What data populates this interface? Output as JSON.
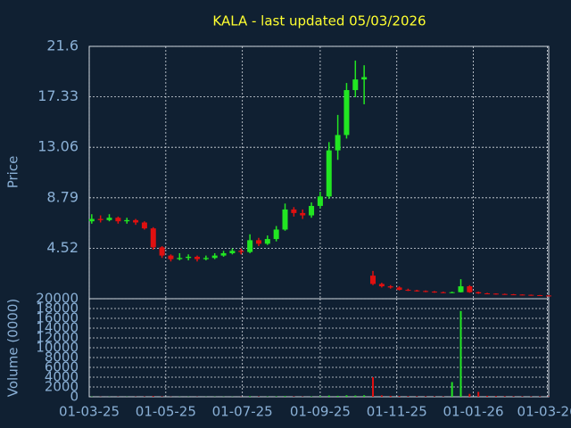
{
  "chart_data": {
    "type": "candlestick",
    "title": "KALA - last updated 05/03/2026",
    "ylabel": "Price",
    "up_color": "#22e622",
    "down_color": "#e01010",
    "grid": true,
    "xlim": [
      "2025-03-01",
      "2026-03-02"
    ],
    "xticks": [
      {
        "value": "2025-03-01",
        "label": "01-03-25"
      },
      {
        "value": "2025-05-01",
        "label": "01-05-25"
      },
      {
        "value": "2025-07-01",
        "label": "01-07-25"
      },
      {
        "value": "2025-09-01",
        "label": "01-09-25"
      },
      {
        "value": "2025-11-01",
        "label": "01-11-25"
      },
      {
        "value": "2026-01-01",
        "label": "01-01-26"
      },
      {
        "value": "2026-03-01",
        "label": "01-03-26"
      }
    ],
    "ylim": [
      0.25,
      21.6
    ],
    "yticks": [
      4.52,
      8.79,
      13.06,
      17.33,
      21.6
    ],
    "x": [
      "2025-03-03",
      "2025-03-10",
      "2025-03-17",
      "2025-03-24",
      "2025-03-31",
      "2025-04-07",
      "2025-04-14",
      "2025-04-21",
      "2025-04-28",
      "2025-05-05",
      "2025-05-12",
      "2025-05-19",
      "2025-05-26",
      "2025-06-02",
      "2025-06-09",
      "2025-06-16",
      "2025-06-23",
      "2025-06-30",
      "2025-07-07",
      "2025-07-14",
      "2025-07-21",
      "2025-07-28",
      "2025-08-04",
      "2025-08-11",
      "2025-08-18",
      "2025-08-25",
      "2025-09-01",
      "2025-09-08",
      "2025-09-15",
      "2025-09-22",
      "2025-09-29",
      "2025-10-06",
      "2025-10-13",
      "2025-10-20",
      "2025-10-27",
      "2025-11-03",
      "2025-11-10",
      "2025-11-17",
      "2025-11-24",
      "2025-12-01",
      "2025-12-08",
      "2025-12-15",
      "2025-12-22",
      "2025-12-29",
      "2026-01-05",
      "2026-01-12",
      "2026-01-19",
      "2026-01-26",
      "2026-02-02",
      "2026-02-09",
      "2026-02-16",
      "2026-02-23",
      "2026-03-02"
    ],
    "open": [
      6.8,
      7.0,
      6.9,
      7.1,
      6.8,
      6.9,
      6.7,
      6.2,
      4.6,
      3.9,
      3.6,
      3.7,
      3.8,
      3.6,
      3.7,
      3.9,
      4.1,
      4.3,
      4.2,
      5.2,
      4.9,
      5.3,
      6.1,
      7.8,
      7.5,
      7.3,
      8.1,
      8.9,
      12.8,
      14.1,
      17.9,
      18.8,
      2.2,
      1.5,
      1.3,
      1.2,
      1.0,
      0.95,
      0.9,
      0.85,
      0.8,
      0.75,
      0.8,
      1.3,
      0.8,
      0.7,
      0.68,
      0.65,
      0.62,
      0.6,
      0.58,
      0.55,
      0.52
    ],
    "high": [
      7.4,
      7.3,
      7.4,
      7.2,
      7.1,
      7.0,
      6.8,
      6.3,
      4.7,
      4.0,
      4.1,
      4.0,
      3.9,
      3.9,
      4.1,
      4.3,
      4.5,
      4.5,
      5.7,
      5.4,
      5.6,
      6.4,
      8.3,
      8.0,
      7.8,
      8.4,
      9.3,
      13.5,
      15.8,
      18.5,
      20.4,
      20.0,
      2.6,
      1.6,
      1.4,
      1.3,
      1.1,
      1.0,
      0.95,
      0.9,
      0.85,
      0.85,
      1.9,
      1.4,
      0.85,
      0.75,
      0.7,
      0.68,
      0.65,
      0.62,
      0.6,
      0.57,
      0.55
    ],
    "low": [
      6.6,
      6.7,
      6.8,
      6.6,
      6.6,
      6.5,
      6.1,
      4.4,
      3.7,
      3.4,
      3.5,
      3.5,
      3.4,
      3.5,
      3.6,
      3.8,
      4.0,
      4.0,
      4.1,
      4.7,
      4.8,
      5.1,
      6.0,
      7.2,
      7.0,
      7.1,
      7.9,
      8.7,
      12.0,
      13.8,
      17.3,
      16.7,
      1.4,
      1.2,
      1.1,
      0.95,
      0.9,
      0.85,
      0.8,
      0.75,
      0.72,
      0.72,
      0.78,
      0.75,
      0.66,
      0.64,
      0.6,
      0.58,
      0.56,
      0.54,
      0.5,
      0.48,
      0.47
    ],
    "close": [
      7.0,
      6.9,
      7.1,
      6.8,
      6.9,
      6.7,
      6.2,
      4.6,
      3.9,
      3.6,
      3.7,
      3.8,
      3.6,
      3.7,
      3.9,
      4.1,
      4.3,
      4.2,
      5.2,
      4.9,
      5.3,
      6.1,
      7.8,
      7.5,
      7.3,
      8.1,
      8.9,
      12.8,
      14.1,
      17.9,
      18.8,
      19.0,
      1.5,
      1.3,
      1.2,
      1.0,
      0.95,
      0.9,
      0.85,
      0.8,
      0.75,
      0.8,
      1.3,
      0.8,
      0.7,
      0.68,
      0.65,
      0.62,
      0.6,
      0.58,
      0.55,
      0.52,
      0.5
    ],
    "volume": {
      "ylabel": "Volume (0000)",
      "ylim": [
        0,
        20000
      ],
      "yticks": [
        0,
        2000,
        4000,
        6000,
        8000,
        10000,
        12000,
        14000,
        16000,
        18000,
        20000
      ],
      "values": [
        60,
        40,
        30,
        40,
        30,
        40,
        60,
        150,
        80,
        40,
        30,
        30,
        30,
        30,
        40,
        40,
        40,
        40,
        120,
        60,
        60,
        80,
        150,
        80,
        60,
        80,
        120,
        250,
        200,
        300,
        250,
        300,
        4000,
        300,
        200,
        150,
        120,
        100,
        100,
        90,
        80,
        3000,
        17500,
        600,
        1000,
        200,
        150,
        120,
        100,
        90,
        80,
        80,
        70
      ]
    }
  }
}
